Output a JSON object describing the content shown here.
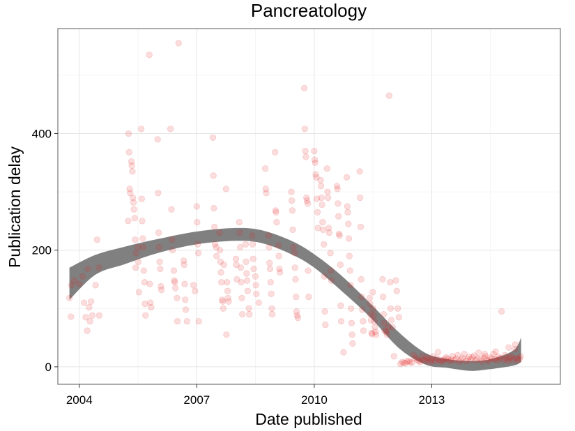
{
  "chart_data": {
    "type": "scatter",
    "title": "Pancreatology",
    "xlabel": "Date published",
    "ylabel": "Publication delay",
    "xlim": [
      "2003-06-15",
      "2016-04-15"
    ],
    "ylim": [
      -30,
      580
    ],
    "x_ticks": [
      {
        "date": "2004-01-01",
        "label": "2004"
      },
      {
        "date": "2007-01-01",
        "label": "2007"
      },
      {
        "date": "2010-01-01",
        "label": "2010"
      },
      {
        "date": "2013-01-01",
        "label": "2013"
      }
    ],
    "y_ticks": [
      {
        "value": 0,
        "label": "0"
      },
      {
        "value": 200,
        "label": "200"
      },
      {
        "value": 400,
        "label": "400"
      }
    ],
    "grid": true,
    "point_color": "#e41a1c",
    "point_opacity": 0.15,
    "smooth_color": "#808080",
    "smooth": [
      {
        "x": "2003-10-01",
        "lo": 115,
        "hi": 170
      },
      {
        "x": "2004-06-01",
        "lo": 158,
        "hi": 192
      },
      {
        "x": "2005-03-01",
        "lo": 176,
        "hi": 206
      },
      {
        "x": "2006-01-01",
        "lo": 195,
        "hi": 219
      },
      {
        "x": "2007-01-01",
        "lo": 210,
        "hi": 232
      },
      {
        "x": "2008-01-01",
        "lo": 216,
        "hi": 238
      },
      {
        "x": "2008-09-01",
        "lo": 212,
        "hi": 234
      },
      {
        "x": "2009-06-01",
        "lo": 193,
        "hi": 216
      },
      {
        "x": "2010-01-01",
        "lo": 170,
        "hi": 193
      },
      {
        "x": "2010-09-01",
        "lo": 132,
        "hi": 158
      },
      {
        "x": "2011-06-01",
        "lo": 86,
        "hi": 110
      },
      {
        "x": "2012-03-01",
        "lo": 32,
        "hi": 59
      },
      {
        "x": "2012-11-01",
        "lo": 4,
        "hi": 24
      },
      {
        "x": "2013-06-01",
        "lo": -2,
        "hi": 13
      },
      {
        "x": "2014-01-01",
        "lo": -7,
        "hi": 10
      },
      {
        "x": "2014-07-01",
        "lo": -4,
        "hi": 13
      },
      {
        "x": "2015-02-01",
        "lo": 2,
        "hi": 28
      },
      {
        "x": "2015-04-15",
        "lo": 8,
        "hi": 50
      }
    ],
    "points": [
      [
        "2003-10-01",
        118
      ],
      [
        "2003-10-15",
        86
      ],
      [
        "2003-10-20",
        140
      ],
      [
        "2003-11-15",
        148
      ],
      [
        "2004-01-01",
        142
      ],
      [
        "2004-02-01",
        155
      ],
      [
        "2004-02-15",
        110
      ],
      [
        "2004-03-01",
        85
      ],
      [
        "2004-03-15",
        62
      ],
      [
        "2004-03-20",
        168
      ],
      [
        "2004-04-01",
        102
      ],
      [
        "2004-04-10",
        78
      ],
      [
        "2004-04-20",
        112
      ],
      [
        "2004-05-01",
        88
      ],
      [
        "2004-06-01",
        140
      ],
      [
        "2004-06-15",
        218
      ],
      [
        "2004-07-01",
        170
      ],
      [
        "2004-07-05",
        88
      ],
      [
        "2005-04-01",
        250
      ],
      [
        "2005-04-05",
        400
      ],
      [
        "2005-04-10",
        368
      ],
      [
        "2005-04-15",
        305
      ],
      [
        "2005-04-20",
        298
      ],
      [
        "2005-05-01",
        352
      ],
      [
        "2005-05-05",
        345
      ],
      [
        "2005-05-10",
        335
      ],
      [
        "2005-05-15",
        290
      ],
      [
        "2005-05-20",
        282
      ],
      [
        "2005-05-25",
        270
      ],
      [
        "2005-06-01",
        255
      ],
      [
        "2005-06-05",
        218
      ],
      [
        "2005-06-10",
        170
      ],
      [
        "2005-06-15",
        195
      ],
      [
        "2005-07-01",
        205
      ],
      [
        "2005-07-05",
        180
      ],
      [
        "2005-07-10",
        128
      ],
      [
        "2005-08-01",
        408
      ],
      [
        "2005-08-05",
        288
      ],
      [
        "2005-08-10",
        250
      ],
      [
        "2005-08-15",
        220
      ],
      [
        "2005-08-20",
        205
      ],
      [
        "2005-08-25",
        165
      ],
      [
        "2005-09-01",
        145
      ],
      [
        "2005-09-05",
        108
      ],
      [
        "2005-09-10",
        88
      ],
      [
        "2005-10-15",
        535
      ],
      [
        "2005-10-20",
        142
      ],
      [
        "2005-10-25",
        110
      ],
      [
        "2005-11-01",
        102
      ],
      [
        "2006-01-01",
        390
      ],
      [
        "2006-01-05",
        298
      ],
      [
        "2006-01-10",
        230
      ],
      [
        "2006-01-15",
        205
      ],
      [
        "2006-01-20",
        180
      ],
      [
        "2006-01-25",
        168
      ],
      [
        "2006-02-01",
        138
      ],
      [
        "2006-02-05",
        132
      ],
      [
        "2006-05-01",
        408
      ],
      [
        "2006-05-10",
        270
      ],
      [
        "2006-05-15",
        218
      ],
      [
        "2006-05-20",
        200
      ],
      [
        "2006-06-01",
        165
      ],
      [
        "2006-06-05",
        148
      ],
      [
        "2006-06-10",
        145
      ],
      [
        "2006-06-15",
        135
      ],
      [
        "2006-07-01",
        118
      ],
      [
        "2006-07-05",
        78
      ],
      [
        "2006-07-15",
        555
      ],
      [
        "2006-09-01",
        182
      ],
      [
        "2006-09-05",
        175
      ],
      [
        "2006-09-10",
        142
      ],
      [
        "2006-09-15",
        115
      ],
      [
        "2006-09-20",
        98
      ],
      [
        "2006-10-01",
        78
      ],
      [
        "2006-12-01",
        140
      ],
      [
        "2006-12-15",
        130
      ],
      [
        "2007-01-01",
        275
      ],
      [
        "2007-01-05",
        248
      ],
      [
        "2007-01-10",
        210
      ],
      [
        "2007-01-15",
        195
      ],
      [
        "2007-01-20",
        78
      ],
      [
        "2007-06-01",
        393
      ],
      [
        "2007-06-05",
        328
      ],
      [
        "2007-06-10",
        272
      ],
      [
        "2007-06-15",
        240
      ],
      [
        "2007-06-20",
        210
      ],
      [
        "2007-07-01",
        205
      ],
      [
        "2007-07-05",
        190
      ],
      [
        "2007-08-01",
        230
      ],
      [
        "2007-08-05",
        200
      ],
      [
        "2007-08-10",
        180
      ],
      [
        "2007-08-15",
        162
      ],
      [
        "2007-08-20",
        145
      ],
      [
        "2007-08-25",
        115
      ],
      [
        "2007-09-01",
        112
      ],
      [
        "2007-09-05",
        100
      ],
      [
        "2007-09-10",
        175
      ],
      [
        "2007-10-01",
        305
      ],
      [
        "2007-10-05",
        55
      ],
      [
        "2007-10-10",
        145
      ],
      [
        "2007-10-15",
        130
      ],
      [
        "2007-10-20",
        118
      ],
      [
        "2007-10-25",
        112
      ],
      [
        "2008-01-01",
        185
      ],
      [
        "2008-01-05",
        175
      ],
      [
        "2008-01-10",
        150
      ],
      [
        "2008-02-01",
        248
      ],
      [
        "2008-02-05",
        230
      ],
      [
        "2008-02-10",
        205
      ],
      [
        "2008-02-15",
        170
      ],
      [
        "2008-02-20",
        145
      ],
      [
        "2008-02-25",
        118
      ],
      [
        "2008-03-01",
        90
      ],
      [
        "2008-04-01",
        210
      ],
      [
        "2008-04-05",
        180
      ],
      [
        "2008-04-10",
        160
      ],
      [
        "2008-04-15",
        148
      ],
      [
        "2008-04-20",
        130
      ],
      [
        "2008-05-01",
        100
      ],
      [
        "2008-05-05",
        90
      ],
      [
        "2008-06-01",
        225
      ],
      [
        "2008-06-05",
        210
      ],
      [
        "2008-06-10",
        185
      ],
      [
        "2008-06-15",
        168
      ],
      [
        "2008-07-01",
        155
      ],
      [
        "2008-07-05",
        140
      ],
      [
        "2008-07-10",
        125
      ],
      [
        "2008-08-01",
        110
      ],
      [
        "2008-10-01",
        340
      ],
      [
        "2008-10-05",
        305
      ],
      [
        "2008-10-10",
        298
      ],
      [
        "2008-11-01",
        225
      ],
      [
        "2008-11-05",
        205
      ],
      [
        "2008-11-10",
        178
      ],
      [
        "2008-11-15",
        168
      ],
      [
        "2008-11-20",
        145
      ],
      [
        "2008-11-25",
        125
      ],
      [
        "2008-12-01",
        100
      ],
      [
        "2008-12-05",
        90
      ],
      [
        "2009-01-01",
        368
      ],
      [
        "2009-01-05",
        268
      ],
      [
        "2009-01-10",
        265
      ],
      [
        "2009-01-15",
        248
      ],
      [
        "2009-02-01",
        208
      ],
      [
        "2009-02-05",
        190
      ],
      [
        "2009-02-10",
        168
      ],
      [
        "2009-02-15",
        162
      ],
      [
        "2009-06-01",
        300
      ],
      [
        "2009-06-05",
        285
      ],
      [
        "2009-06-10",
        268
      ],
      [
        "2009-06-15",
        235
      ],
      [
        "2009-06-20",
        205
      ],
      [
        "2009-07-01",
        195
      ],
      [
        "2009-07-05",
        170
      ],
      [
        "2009-07-10",
        150
      ],
      [
        "2009-07-15",
        120
      ],
      [
        "2009-07-20",
        95
      ],
      [
        "2009-07-25",
        88
      ],
      [
        "2009-08-01",
        84
      ],
      [
        "2009-10-01",
        478
      ],
      [
        "2009-10-05",
        408
      ],
      [
        "2009-10-10",
        370
      ],
      [
        "2009-10-15",
        360
      ],
      [
        "2009-10-20",
        290
      ],
      [
        "2009-10-25",
        285
      ],
      [
        "2009-11-01",
        280
      ],
      [
        "2009-11-05",
        165
      ],
      [
        "2009-11-10",
        120
      ],
      [
        "2010-01-01",
        370
      ],
      [
        "2010-01-05",
        355
      ],
      [
        "2010-01-10",
        350
      ],
      [
        "2010-01-15",
        330
      ],
      [
        "2010-01-20",
        325
      ],
      [
        "2010-01-25",
        288
      ],
      [
        "2010-02-01",
        265
      ],
      [
        "2010-02-05",
        238
      ],
      [
        "2010-03-01",
        320
      ],
      [
        "2010-03-05",
        310
      ],
      [
        "2010-03-10",
        290
      ],
      [
        "2010-03-15",
        278
      ],
      [
        "2010-03-20",
        248
      ],
      [
        "2010-03-25",
        235
      ],
      [
        "2010-04-01",
        210
      ],
      [
        "2010-04-05",
        155
      ],
      [
        "2010-04-10",
        95
      ],
      [
        "2010-04-15",
        72
      ],
      [
        "2010-05-01",
        340
      ],
      [
        "2010-05-05",
        300
      ],
      [
        "2010-05-10",
        290
      ],
      [
        "2010-05-15",
        238
      ],
      [
        "2010-05-20",
        230
      ],
      [
        "2010-06-01",
        195
      ],
      [
        "2010-06-05",
        165
      ],
      [
        "2010-06-10",
        148
      ],
      [
        "2010-08-01",
        310
      ],
      [
        "2010-08-05",
        305
      ],
      [
        "2010-08-10",
        280
      ],
      [
        "2010-08-15",
        258
      ],
      [
        "2010-08-20",
        228
      ],
      [
        "2010-08-25",
        225
      ],
      [
        "2010-09-01",
        175
      ],
      [
        "2010-09-05",
        105
      ],
      [
        "2010-09-10",
        78
      ],
      [
        "2010-10-01",
        25
      ],
      [
        "2010-11-01",
        325
      ],
      [
        "2010-11-05",
        275
      ],
      [
        "2010-11-10",
        265
      ],
      [
        "2010-11-15",
        245
      ],
      [
        "2010-11-20",
        220
      ],
      [
        "2010-11-25",
        190
      ],
      [
        "2010-12-01",
        165
      ],
      [
        "2010-12-05",
        140
      ],
      [
        "2010-12-10",
        100
      ],
      [
        "2010-12-15",
        75
      ],
      [
        "2010-12-20",
        55
      ],
      [
        "2010-12-25",
        40
      ],
      [
        "2011-03-01",
        335
      ],
      [
        "2011-03-05",
        290
      ],
      [
        "2011-03-10",
        240
      ],
      [
        "2011-03-15",
        150
      ],
      [
        "2011-03-20",
        120
      ],
      [
        "2011-03-25",
        98
      ],
      [
        "2011-04-01",
        78
      ],
      [
        "2011-04-05",
        62
      ],
      [
        "2011-06-01",
        118
      ],
      [
        "2011-06-05",
        108
      ],
      [
        "2011-06-10",
        90
      ],
      [
        "2011-06-15",
        80
      ],
      [
        "2011-06-20",
        58
      ],
      [
        "2011-06-25",
        56
      ],
      [
        "2011-07-01",
        128
      ],
      [
        "2011-07-05",
        100
      ],
      [
        "2011-07-10",
        88
      ],
      [
        "2011-07-15",
        78
      ],
      [
        "2011-07-20",
        68
      ],
      [
        "2011-07-25",
        60
      ],
      [
        "2011-08-01",
        55
      ],
      [
        "2011-10-01",
        150
      ],
      [
        "2011-10-05",
        120
      ],
      [
        "2011-10-10",
        90
      ],
      [
        "2011-10-15",
        75
      ],
      [
        "2011-10-20",
        62
      ],
      [
        "2011-11-01",
        60
      ],
      [
        "2011-11-10",
        55
      ],
      [
        "2011-11-20",
        68
      ],
      [
        "2011-12-01",
        465
      ],
      [
        "2011-12-10",
        145
      ],
      [
        "2011-12-15",
        100
      ],
      [
        "2011-12-20",
        80
      ],
      [
        "2012-01-01",
        68
      ],
      [
        "2012-01-15",
        18
      ],
      [
        "2012-02-01",
        148
      ],
      [
        "2012-02-10",
        130
      ],
      [
        "2012-02-20",
        100
      ],
      [
        "2012-03-01",
        85
      ],
      [
        "2012-03-15",
        5
      ],
      [
        "2012-04-01",
        8
      ],
      [
        "2012-04-15",
        7
      ],
      [
        "2012-05-01",
        6
      ],
      [
        "2012-05-15",
        9
      ],
      [
        "2012-06-01",
        10
      ],
      [
        "2012-06-15",
        8
      ],
      [
        "2012-07-01",
        7
      ],
      [
        "2012-07-15",
        20
      ],
      [
        "2012-08-01",
        15
      ],
      [
        "2012-08-15",
        12
      ],
      [
        "2012-09-01",
        10
      ],
      [
        "2012-09-15",
        8
      ],
      [
        "2012-10-01",
        18
      ],
      [
        "2012-10-15",
        12
      ],
      [
        "2012-11-01",
        10
      ],
      [
        "2012-11-15",
        16
      ],
      [
        "2012-12-01",
        14
      ],
      [
        "2012-12-15",
        8
      ],
      [
        "2013-01-01",
        12
      ],
      [
        "2013-01-15",
        18
      ],
      [
        "2013-02-01",
        10
      ],
      [
        "2013-02-15",
        14
      ],
      [
        "2013-03-01",
        25
      ],
      [
        "2013-03-15",
        12
      ],
      [
        "2013-04-01",
        9
      ],
      [
        "2013-04-15",
        11
      ],
      [
        "2013-05-01",
        13
      ],
      [
        "2013-05-15",
        16
      ],
      [
        "2013-06-01",
        14
      ],
      [
        "2013-06-15",
        10
      ],
      [
        "2013-07-01",
        12
      ],
      [
        "2013-07-15",
        18
      ],
      [
        "2013-08-01",
        11
      ],
      [
        "2013-08-15",
        14
      ],
      [
        "2013-09-01",
        20
      ],
      [
        "2013-09-15",
        9
      ],
      [
        "2013-10-01",
        12
      ],
      [
        "2013-10-15",
        15
      ],
      [
        "2013-11-01",
        22
      ],
      [
        "2013-11-15",
        10
      ],
      [
        "2013-12-01",
        13
      ],
      [
        "2013-12-15",
        17
      ],
      [
        "2014-01-01",
        12
      ],
      [
        "2014-01-15",
        16
      ],
      [
        "2014-02-01",
        19
      ],
      [
        "2014-02-15",
        11
      ],
      [
        "2014-03-01",
        14
      ],
      [
        "2014-03-15",
        24
      ],
      [
        "2014-04-01",
        13
      ],
      [
        "2014-04-15",
        9
      ],
      [
        "2014-05-01",
        15
      ],
      [
        "2014-05-15",
        18
      ],
      [
        "2014-06-01",
        12
      ],
      [
        "2014-06-15",
        10
      ],
      [
        "2014-07-01",
        16
      ],
      [
        "2014-07-15",
        14
      ],
      [
        "2014-08-01",
        22
      ],
      [
        "2014-08-15",
        13
      ],
      [
        "2014-09-01",
        11
      ],
      [
        "2014-09-15",
        17
      ],
      [
        "2014-10-01",
        15
      ],
      [
        "2014-10-15",
        95
      ],
      [
        "2014-11-01",
        12
      ],
      [
        "2014-11-15",
        20
      ],
      [
        "2014-12-01",
        14
      ],
      [
        "2014-12-15",
        10
      ],
      [
        "2015-01-01",
        16
      ],
      [
        "2015-01-15",
        18
      ],
      [
        "2015-02-01",
        12
      ],
      [
        "2015-02-15",
        30
      ],
      [
        "2015-03-01",
        15
      ],
      [
        "2015-03-15",
        11
      ],
      [
        "2015-04-01",
        14
      ],
      [
        "2015-04-10",
        18
      ],
      [
        "2014-05-10",
        22
      ],
      [
        "2014-08-20",
        26
      ],
      [
        "2014-12-20",
        33
      ],
      [
        "2015-02-20",
        38
      ]
    ]
  }
}
